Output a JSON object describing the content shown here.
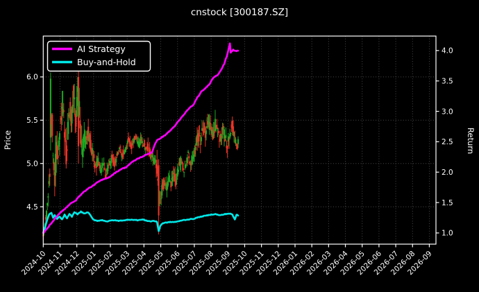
{
  "window": {
    "background": "#000000",
    "text_color": "#ffffff",
    "grid_color": "#5a5a5a",
    "frame_color": "#ffffff"
  },
  "chart_data": {
    "type": "candlestick+line",
    "title": "cnstock [300187.SZ]",
    "legend": {
      "position": "top-left",
      "entries": [
        "AI Strategy",
        "Buy-and-Hold"
      ]
    },
    "x_axis": {
      "tick_labels": [
        "2024-10",
        "2024-11",
        "2024-12",
        "2025-01",
        "2025-02",
        "2025-03",
        "2025-04",
        "2025-05",
        "2025-06",
        "2025-07",
        "2025-08",
        "2025-09",
        "2025-10",
        "2025-11",
        "2025-12",
        "2026-01",
        "2026-02",
        "2026-03",
        "2026-04",
        "2026-05",
        "2026-06",
        "2026-07",
        "2026-08",
        "2026-09"
      ],
      "label_rotation_deg": 45,
      "data_start": "2024-10",
      "data_end": "2025-09",
      "trading_days": 239,
      "grid": false
    },
    "left_axis": {
      "label": "Price",
      "tick_values": [
        4.5,
        5.0,
        5.5,
        6.0
      ],
      "ylim": [
        4.068,
        6.472
      ],
      "grid": true
    },
    "right_axis": {
      "label": "Return",
      "tick_values": [
        1.0,
        1.5,
        2.0,
        2.5,
        3.0,
        3.5,
        4.0
      ],
      "ylim": [
        0.816,
        4.238
      ],
      "grid": false
    },
    "series": [
      {
        "name": "AI Strategy",
        "type": "line",
        "axis": "right",
        "color": "#ff00ff",
        "line_width": 2.6,
        "keypoints_day_value": [
          [
            0,
            1.0
          ],
          [
            5,
            1.08
          ],
          [
            10,
            1.16
          ],
          [
            15,
            1.25
          ],
          [
            20,
            1.32
          ],
          [
            25,
            1.38
          ],
          [
            30,
            1.44
          ],
          [
            35,
            1.5
          ],
          [
            40,
            1.54
          ],
          [
            45,
            1.62
          ],
          [
            50,
            1.68
          ],
          [
            55,
            1.73
          ],
          [
            61,
            1.78
          ],
          [
            67,
            1.84
          ],
          [
            73,
            1.88
          ],
          [
            81,
            1.92
          ],
          [
            88,
            1.99
          ],
          [
            95,
            2.05
          ],
          [
            101,
            2.08
          ],
          [
            108,
            2.16
          ],
          [
            115,
            2.22
          ],
          [
            122,
            2.26
          ],
          [
            128,
            2.3
          ],
          [
            133,
            2.33
          ],
          [
            136,
            2.45
          ],
          [
            139,
            2.52
          ],
          [
            142,
            2.55
          ],
          [
            148,
            2.6
          ],
          [
            154,
            2.67
          ],
          [
            160,
            2.75
          ],
          [
            166,
            2.85
          ],
          [
            172,
            2.95
          ],
          [
            178,
            3.05
          ],
          [
            183,
            3.1
          ],
          [
            188,
            3.22
          ],
          [
            193,
            3.32
          ],
          [
            198,
            3.38
          ],
          [
            203,
            3.45
          ],
          [
            208,
            3.56
          ],
          [
            213,
            3.6
          ],
          [
            218,
            3.7
          ],
          [
            221,
            3.78
          ],
          [
            224,
            3.9
          ],
          [
            226,
            4.0
          ],
          [
            228,
            4.12
          ],
          [
            229,
            3.97
          ],
          [
            232,
            4.01
          ],
          [
            235,
            3.99
          ],
          [
            238,
            4.0
          ]
        ]
      },
      {
        "name": "Buy-and-Hold",
        "type": "line",
        "axis": "right",
        "color": "#00e8e8",
        "line_width": 2.6,
        "keypoints_day_value": [
          [
            0,
            1.0
          ],
          [
            2,
            1.08
          ],
          [
            4,
            1.18
          ],
          [
            7,
            1.3
          ],
          [
            10,
            1.33
          ],
          [
            12,
            1.25
          ],
          [
            14,
            1.29
          ],
          [
            17,
            1.23
          ],
          [
            20,
            1.27
          ],
          [
            23,
            1.22
          ],
          [
            26,
            1.3
          ],
          [
            29,
            1.24
          ],
          [
            32,
            1.31
          ],
          [
            35,
            1.27
          ],
          [
            38,
            1.34
          ],
          [
            42,
            1.31
          ],
          [
            46,
            1.35
          ],
          [
            50,
            1.32
          ],
          [
            55,
            1.34
          ],
          [
            61,
            1.22
          ],
          [
            66,
            1.2
          ],
          [
            72,
            1.21
          ],
          [
            78,
            1.19
          ],
          [
            85,
            1.21
          ],
          [
            92,
            1.2
          ],
          [
            100,
            1.21
          ],
          [
            108,
            1.22
          ],
          [
            115,
            1.21
          ],
          [
            122,
            1.22
          ],
          [
            127,
            1.2
          ],
          [
            131,
            1.19
          ],
          [
            135,
            1.2
          ],
          [
            139,
            1.18
          ],
          [
            141,
            1.03
          ],
          [
            143,
            1.12
          ],
          [
            146,
            1.16
          ],
          [
            150,
            1.17
          ],
          [
            155,
            1.18
          ],
          [
            160,
            1.18
          ],
          [
            165,
            1.19
          ],
          [
            170,
            1.21
          ],
          [
            176,
            1.22
          ],
          [
            183,
            1.23
          ],
          [
            190,
            1.26
          ],
          [
            197,
            1.28
          ],
          [
            204,
            1.3
          ],
          [
            210,
            1.31
          ],
          [
            216,
            1.29
          ],
          [
            222,
            1.31
          ],
          [
            228,
            1.32
          ],
          [
            231,
            1.3
          ],
          [
            234,
            1.22
          ],
          [
            236,
            1.3
          ],
          [
            238,
            1.29
          ]
        ]
      },
      {
        "name": "Price OHLC",
        "type": "candlestick",
        "axis": "left",
        "up_color": "#1faa22",
        "down_color": "#ea3326",
        "close_keypoints_day_value": [
          [
            0,
            4.18
          ],
          [
            2,
            4.3
          ],
          [
            4,
            4.45
          ],
          [
            6,
            4.6
          ],
          [
            8,
            4.95
          ],
          [
            10,
            5.55
          ],
          [
            12,
            5.1
          ],
          [
            14,
            4.85
          ],
          [
            16,
            5.2
          ],
          [
            18,
            5.0
          ],
          [
            20,
            5.3
          ],
          [
            22,
            5.55
          ],
          [
            24,
            5.7
          ],
          [
            26,
            5.35
          ],
          [
            28,
            5.1
          ],
          [
            30,
            5.4
          ],
          [
            32,
            5.65
          ],
          [
            34,
            5.5
          ],
          [
            36,
            5.8
          ],
          [
            38,
            5.65
          ],
          [
            40,
            5.55
          ],
          [
            42,
            5.75
          ],
          [
            44,
            5.6
          ],
          [
            46,
            5.3
          ],
          [
            48,
            5.15
          ],
          [
            50,
            5.35
          ],
          [
            52,
            5.25
          ],
          [
            54,
            5.4
          ],
          [
            56,
            5.3
          ],
          [
            58,
            5.2
          ],
          [
            61,
            5.1
          ],
          [
            64,
            4.95
          ],
          [
            67,
            5.05
          ],
          [
            70,
            4.9
          ],
          [
            73,
            5.0
          ],
          [
            76,
            4.88
          ],
          [
            79,
            4.95
          ],
          [
            81,
            5.0
          ],
          [
            84,
            5.08
          ],
          [
            87,
            4.98
          ],
          [
            90,
            5.1
          ],
          [
            93,
            5.18
          ],
          [
            96,
            5.08
          ],
          [
            99,
            5.15
          ],
          [
            101,
            5.2
          ],
          [
            104,
            5.28
          ],
          [
            107,
            5.18
          ],
          [
            110,
            5.25
          ],
          [
            113,
            5.32
          ],
          [
            116,
            5.22
          ],
          [
            119,
            5.28
          ],
          [
            122,
            5.24
          ],
          [
            125,
            5.15
          ],
          [
            128,
            5.2
          ],
          [
            131,
            5.1
          ],
          [
            134,
            5.05
          ],
          [
            137,
            5.0
          ],
          [
            139,
            4.95
          ],
          [
            141,
            4.45
          ],
          [
            143,
            4.6
          ],
          [
            145,
            4.72
          ],
          [
            147,
            4.8
          ],
          [
            150,
            4.7
          ],
          [
            153,
            4.85
          ],
          [
            156,
            4.75
          ],
          [
            159,
            4.88
          ],
          [
            162,
            4.8
          ],
          [
            165,
            4.95
          ],
          [
            168,
            5.05
          ],
          [
            171,
            4.9
          ],
          [
            174,
            5.0
          ],
          [
            177,
            5.1
          ],
          [
            180,
            5.0
          ],
          [
            183,
            5.05
          ],
          [
            186,
            5.2
          ],
          [
            189,
            5.35
          ],
          [
            192,
            5.25
          ],
          [
            195,
            5.45
          ],
          [
            198,
            5.35
          ],
          [
            201,
            5.5
          ],
          [
            204,
            5.4
          ],
          [
            207,
            5.3
          ],
          [
            210,
            5.45
          ],
          [
            213,
            5.35
          ],
          [
            216,
            5.25
          ],
          [
            219,
            5.4
          ],
          [
            222,
            5.3
          ],
          [
            225,
            5.2
          ],
          [
            228,
            5.35
          ],
          [
            231,
            5.45
          ],
          [
            234,
            5.3
          ],
          [
            236,
            5.15
          ],
          [
            238,
            5.25
          ]
        ],
        "volatility_keypoints_day_value": [
          [
            0,
            0.1
          ],
          [
            5,
            0.2
          ],
          [
            8,
            0.45
          ],
          [
            10,
            0.55
          ],
          [
            14,
            0.5
          ],
          [
            20,
            0.45
          ],
          [
            26,
            0.5
          ],
          [
            32,
            0.45
          ],
          [
            38,
            0.5
          ],
          [
            44,
            0.55
          ],
          [
            50,
            0.35
          ],
          [
            56,
            0.3
          ],
          [
            61,
            0.25
          ],
          [
            70,
            0.18
          ],
          [
            81,
            0.15
          ],
          [
            95,
            0.15
          ],
          [
            110,
            0.14
          ],
          [
            125,
            0.15
          ],
          [
            137,
            0.18
          ],
          [
            141,
            0.45
          ],
          [
            144,
            0.25
          ],
          [
            155,
            0.18
          ],
          [
            165,
            0.2
          ],
          [
            175,
            0.18
          ],
          [
            185,
            0.2
          ],
          [
            195,
            0.25
          ],
          [
            205,
            0.25
          ],
          [
            215,
            0.22
          ],
          [
            225,
            0.25
          ],
          [
            235,
            0.22
          ],
          [
            238,
            0.18
          ]
        ],
        "feature_candles": [
          {
            "day": 9,
            "open": 5.3,
            "high": 6.05,
            "low": 5.15,
            "close": 5.98
          },
          {
            "day": 43,
            "open": 6.0,
            "high": 6.08,
            "low": 5.0,
            "close": 5.2
          },
          {
            "day": 141,
            "open": 4.98,
            "high": 5.05,
            "low": 4.18,
            "close": 4.4
          }
        ]
      }
    ]
  }
}
